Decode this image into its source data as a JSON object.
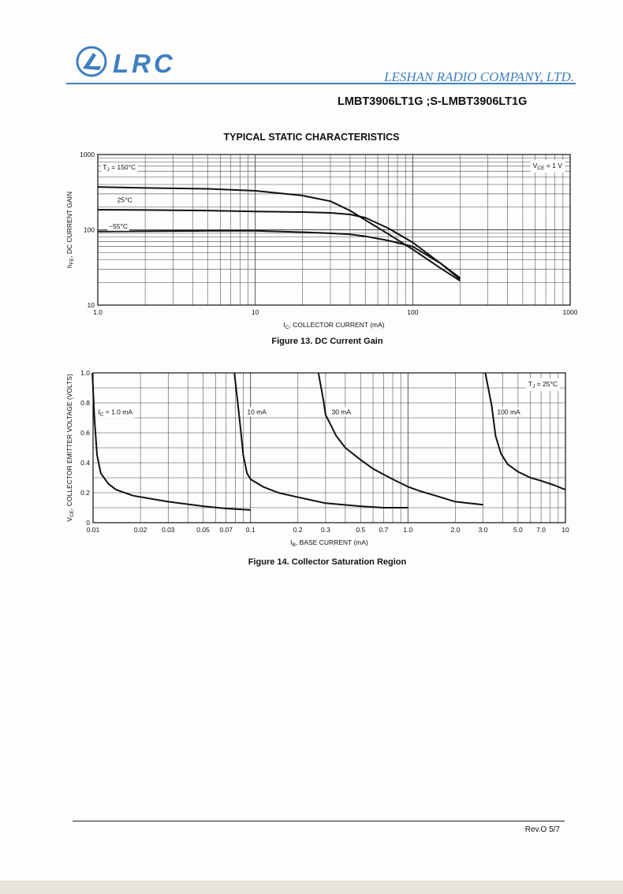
{
  "header": {
    "logo_text": "LRC",
    "company": "LESHAN RADIO COMPANY, LTD.",
    "part_number": "LMBT3906LT1G ;S-LMBT3906LT1G",
    "brand_color": "#3f7fc2"
  },
  "section_title": "TYPICAL STATIC CHARACTERISTICS",
  "chart_data": [
    {
      "type": "line",
      "title": "Figure 13. DC Current Gain",
      "xscale": "log",
      "yscale": "log",
      "xlabel": "I_C, COLLECTOR CURRENT (mA)",
      "ylabel": "h_FE, DC CURRENT GAIN",
      "xlim": [
        1,
        1000
      ],
      "ylim": [
        10,
        1000
      ],
      "xticks": [
        1,
        10,
        100,
        1000
      ],
      "xtick_labels": [
        "1.0",
        "10",
        "100",
        "1000"
      ],
      "yticks": [
        10,
        100,
        1000
      ],
      "ytick_labels": [
        "10",
        "100",
        "1000"
      ],
      "condition_label": "V_CE = 1 V",
      "series": [
        {
          "name": "T_J = 150°C",
          "label": "T_J = 150°C",
          "label_at": [
            1.05,
            680
          ],
          "x": [
            1,
            2,
            5,
            10,
            20,
            30,
            40,
            50,
            70,
            100,
            150,
            200
          ],
          "y": [
            370,
            360,
            350,
            330,
            285,
            240,
            180,
            135,
            88,
            55,
            31,
            21
          ]
        },
        {
          "name": "25°C",
          "label": "25°C",
          "label_at": [
            1.3,
            250
          ],
          "x": [
            1,
            2,
            5,
            10,
            20,
            30,
            40,
            50,
            70,
            100,
            150,
            200
          ],
          "y": [
            185,
            183,
            180,
            175,
            172,
            168,
            160,
            145,
            105,
            68,
            36,
            22
          ]
        },
        {
          "name": "−55°C",
          "label": "−55°C",
          "label_at": [
            1.15,
            112
          ],
          "x": [
            1,
            2,
            5,
            10,
            20,
            30,
            40,
            50,
            70,
            100,
            150,
            200
          ],
          "y": [
            95,
            96,
            97,
            97,
            93,
            90,
            87,
            82,
            72,
            60,
            36,
            23
          ]
        }
      ]
    },
    {
      "type": "line",
      "title": "Figure 14. Collector Saturation Region",
      "xscale": "log",
      "yscale": "linear",
      "xlabel": "I_B, BASE CURRENT (mA)",
      "ylabel": "V_CE, COLLECTOR EMITTER VOLTAGE (VOLTS)",
      "xlim": [
        0.01,
        10
      ],
      "ylim": [
        0,
        1.0
      ],
      "xticks": [
        0.01,
        0.02,
        0.03,
        0.05,
        0.07,
        0.1,
        0.2,
        0.3,
        0.5,
        0.7,
        1.0,
        2.0,
        3.0,
        5.0,
        7.0,
        10
      ],
      "xtick_labels": [
        "0.01",
        "0.02",
        "0.03",
        "0.05",
        "0.07",
        "0.1",
        "0.2",
        "0.3",
        "0.5",
        "0.7",
        "1.0",
        "2.0",
        "3.0",
        "5.0",
        "7.0",
        "10"
      ],
      "yticks": [
        0,
        0.2,
        0.4,
        0.6,
        0.8,
        1.0
      ],
      "ytick_labels": [
        "0",
        "0.2",
        "0.4",
        "0.6",
        "0.8",
        "1.0"
      ],
      "condition_label": "T_J = 25°C",
      "series": [
        {
          "name": "I_C = 1.0 mA",
          "label": "I_C = 1.0 mA",
          "label_at": [
            0.0105,
            0.74
          ],
          "x": [
            0.0099,
            0.0102,
            0.0106,
            0.0112,
            0.0125,
            0.014,
            0.018,
            0.03,
            0.05,
            0.07,
            0.1
          ],
          "y": [
            1.0,
            0.7,
            0.45,
            0.33,
            0.26,
            0.22,
            0.18,
            0.14,
            0.11,
            0.095,
            0.085
          ]
        },
        {
          "name": "10 mA",
          "label": "10 mA",
          "label_at": [
            0.093,
            0.74
          ],
          "x": [
            0.079,
            0.083,
            0.087,
            0.09,
            0.095,
            0.1,
            0.12,
            0.15,
            0.2,
            0.3,
            0.5,
            0.7,
            1.0
          ],
          "y": [
            1.0,
            0.8,
            0.6,
            0.45,
            0.33,
            0.29,
            0.24,
            0.2,
            0.17,
            0.13,
            0.11,
            0.1,
            0.1
          ]
        },
        {
          "name": "30 mA",
          "label": "30 mA",
          "label_at": [
            0.32,
            0.74
          ],
          "x": [
            0.27,
            0.29,
            0.3,
            0.35,
            0.4,
            0.5,
            0.6,
            0.8,
            1.0,
            1.2,
            1.5,
            2.0,
            3.0
          ],
          "y": [
            1.0,
            0.82,
            0.72,
            0.58,
            0.5,
            0.42,
            0.36,
            0.29,
            0.24,
            0.21,
            0.18,
            0.14,
            0.12
          ]
        },
        {
          "name": "100 mA",
          "label": "100 mA",
          "label_at": [
            3.6,
            0.74
          ],
          "x": [
            3.1,
            3.4,
            3.6,
            3.9,
            4.3,
            5.0,
            6.0,
            7.0,
            8.5,
            10
          ],
          "y": [
            1.0,
            0.78,
            0.58,
            0.46,
            0.39,
            0.34,
            0.3,
            0.28,
            0.25,
            0.22
          ]
        }
      ]
    }
  ],
  "footer": {
    "revision": "Rev.O  5/7"
  }
}
